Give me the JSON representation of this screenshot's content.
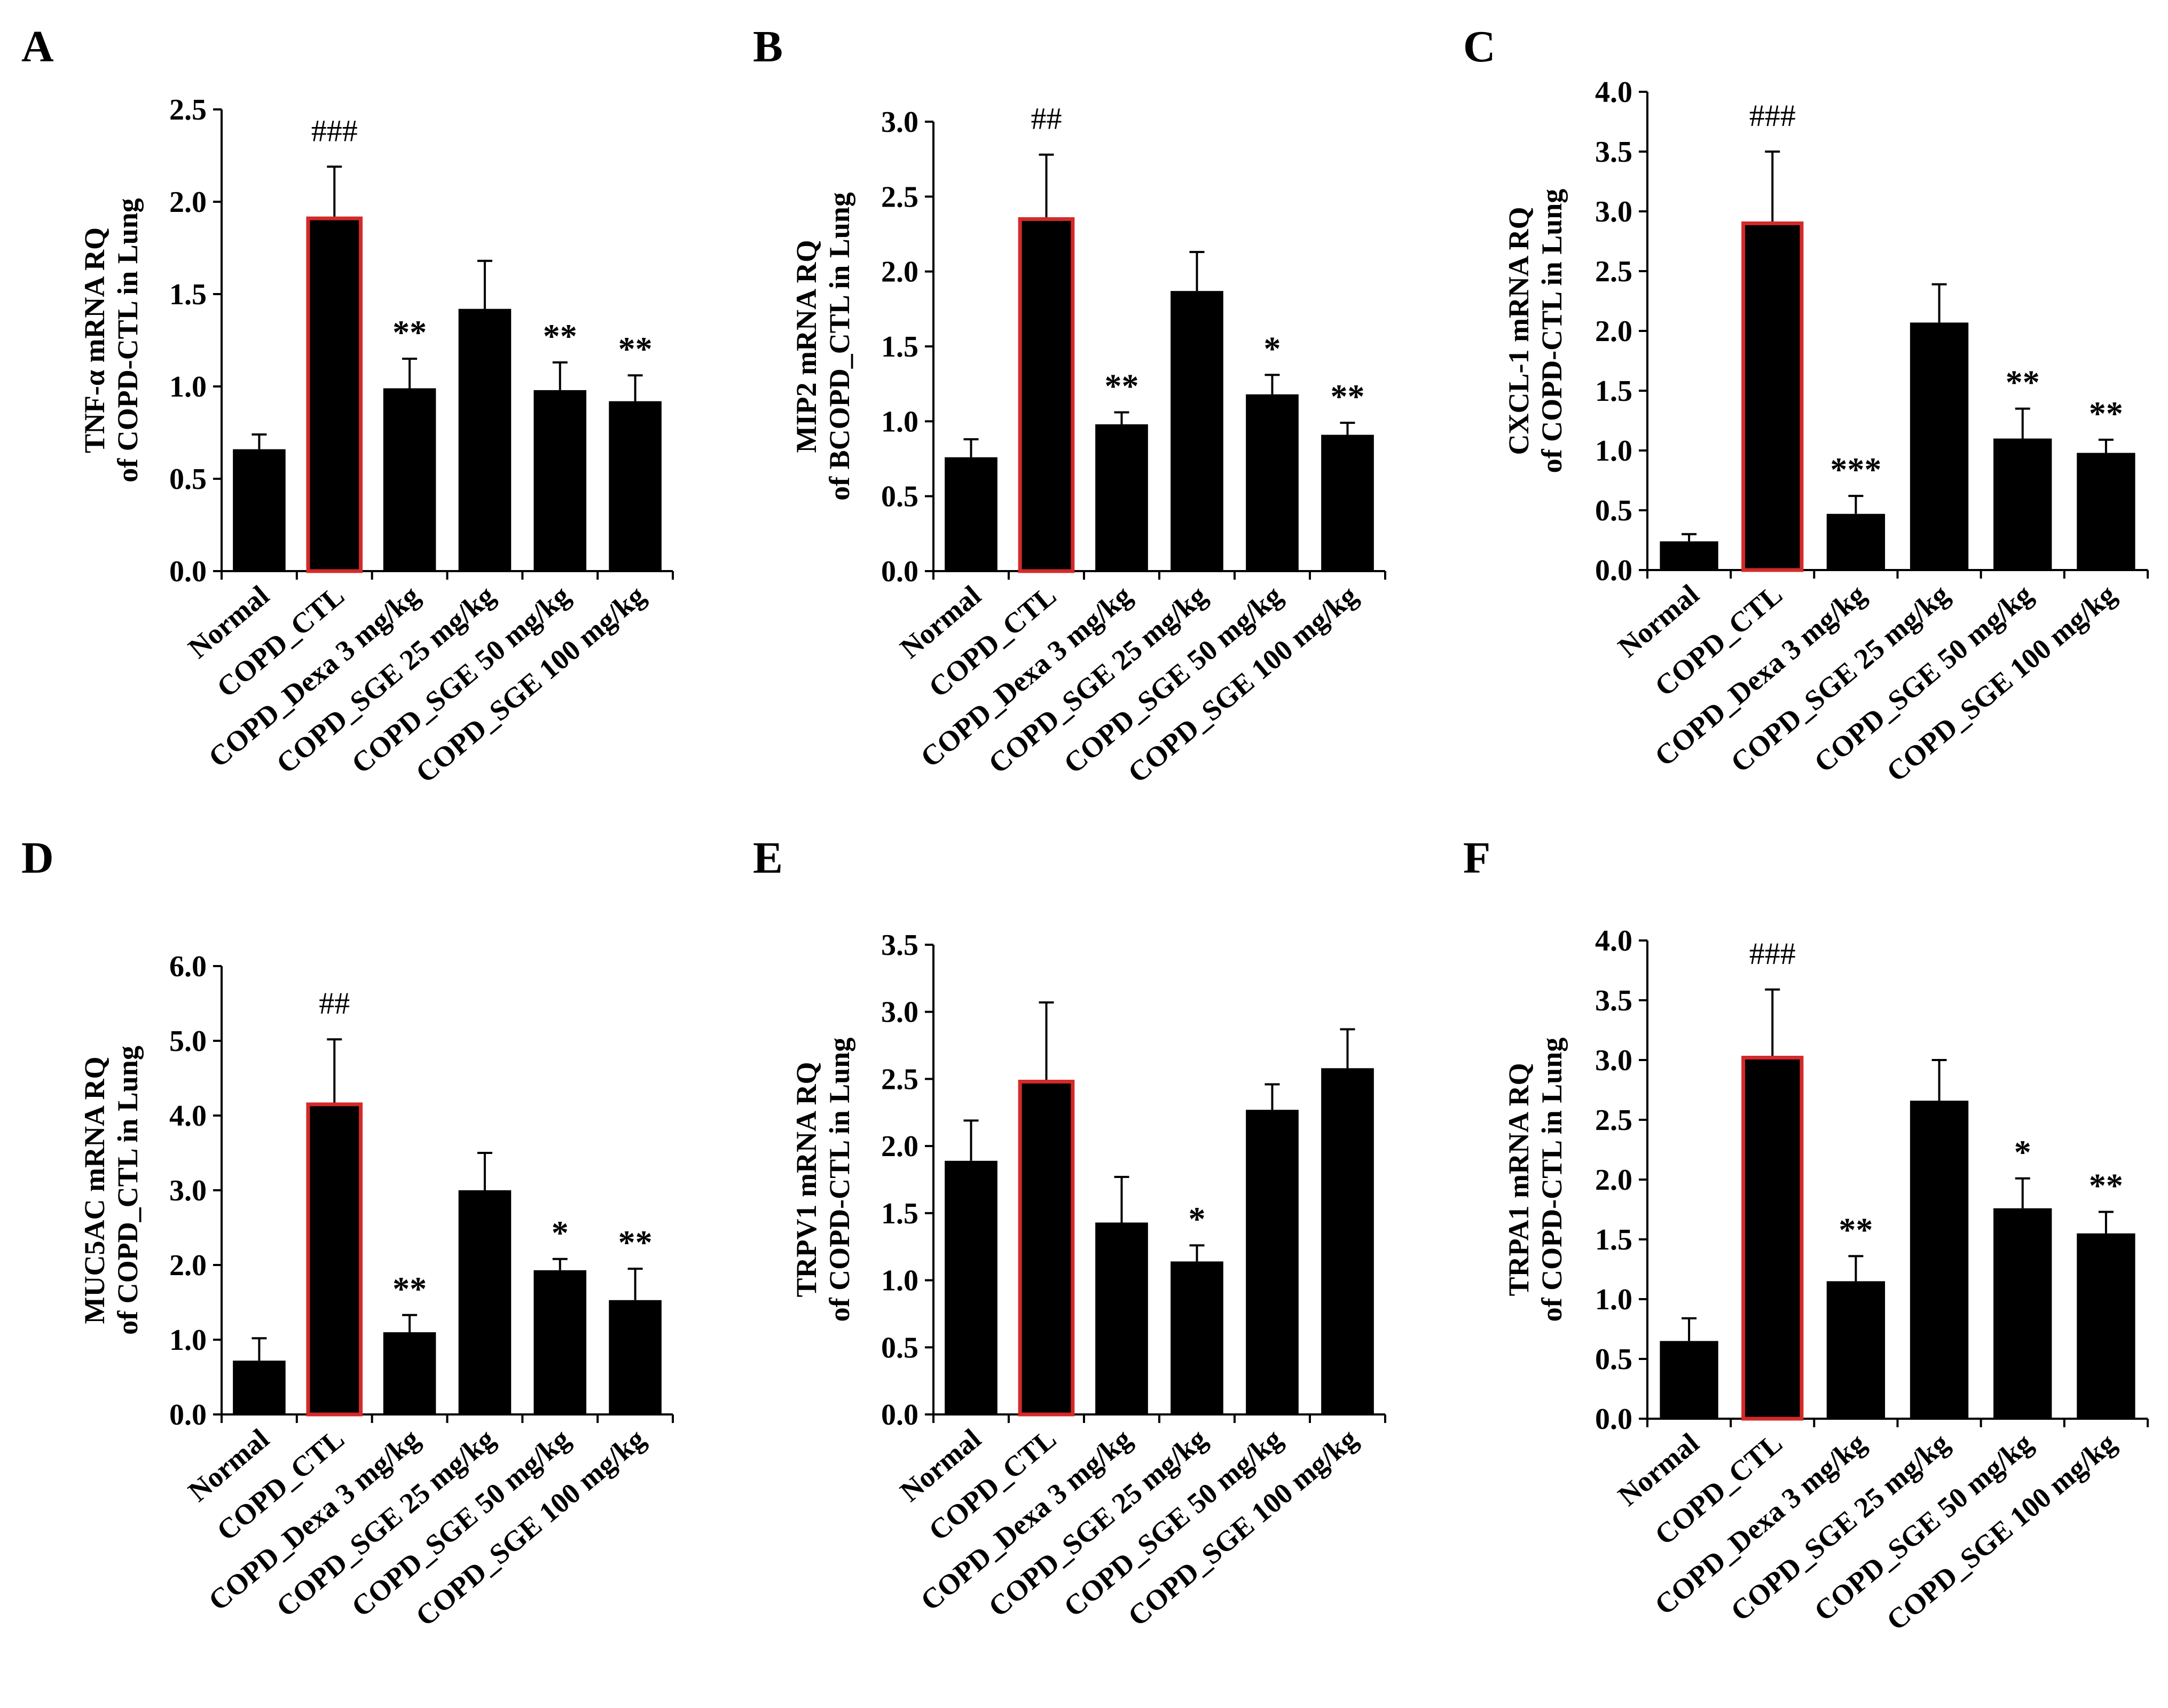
{
  "colors": {
    "bar": "#000000",
    "highlight_border": "#d42a2a",
    "axis": "#000000"
  },
  "chart_data": [
    {
      "panel": "A",
      "type": "bar",
      "ylabel": [
        "TNF-α mRNA RQ",
        "of COPD-CTL in Lung"
      ],
      "ylim": [
        0,
        2.5
      ],
      "yticks": [
        0.0,
        0.5,
        1.0,
        1.5,
        2.0,
        2.5
      ],
      "categories": [
        "Normal",
        "COPD_CTL",
        "COPD_Dexa 3 mg/kg",
        "COPD_SGE 25 mg/kg",
        "COPD_SGE 50 mg/kg",
        "COPD_SGE 100 mg/kg"
      ],
      "values": [
        0.66,
        1.91,
        0.99,
        1.42,
        0.98,
        0.92
      ],
      "errors": [
        0.08,
        0.28,
        0.16,
        0.26,
        0.15,
        0.14
      ],
      "annotations": [
        "",
        "###",
        "**",
        "",
        "**",
        "**"
      ]
    },
    {
      "panel": "B",
      "type": "bar",
      "ylabel": [
        "MIP2 mRNA RQ",
        "of BCOPD_CTL in Lung"
      ],
      "ylim": [
        0,
        3.0
      ],
      "yticks": [
        0.0,
        0.5,
        1.0,
        1.5,
        2.0,
        2.5,
        3.0
      ],
      "categories": [
        "Normal",
        "COPD_CTL",
        "COPD_Dexa 3 mg/kg",
        "COPD_SGE 25 mg/kg",
        "COPD_SGE 50 mg/kg",
        "COPD_SGE 100 mg/kg"
      ],
      "values": [
        0.76,
        2.35,
        0.98,
        1.87,
        1.18,
        0.91
      ],
      "errors": [
        0.12,
        0.43,
        0.08,
        0.26,
        0.13,
        0.08
      ],
      "annotations": [
        "",
        "##",
        "**",
        "",
        "*",
        "**"
      ]
    },
    {
      "panel": "C",
      "type": "bar",
      "ylabel": [
        "CXCL-1 mRNA RQ",
        "of COPD-CTL in Lung"
      ],
      "ylim": [
        0,
        4.0
      ],
      "yticks": [
        0.0,
        0.5,
        1.0,
        1.5,
        2.0,
        2.5,
        3.0,
        3.5,
        4.0
      ],
      "categories": [
        "Normal",
        "COPD_CTL",
        "COPD_Dexa 3 mg/kg",
        "COPD_SGE 25 mg/kg",
        "COPD_SGE 50 mg/kg",
        "COPD_SGE 100 mg/kg"
      ],
      "values": [
        0.24,
        2.9,
        0.47,
        2.07,
        1.1,
        0.98
      ],
      "errors": [
        0.06,
        0.6,
        0.15,
        0.32,
        0.25,
        0.11
      ],
      "annotations": [
        "",
        "###",
        "***",
        "",
        "**",
        "**"
      ]
    },
    {
      "panel": "D",
      "type": "bar",
      "ylabel": [
        "MUC5AC mRNA RQ",
        "of COPD_CTL in Lung"
      ],
      "ylim": [
        0,
        6.0
      ],
      "yticks": [
        0.0,
        1.0,
        2.0,
        3.0,
        4.0,
        5.0,
        6.0
      ],
      "categories": [
        "Normal",
        "COPD_CTL",
        "COPD_Dexa 3 mg/kg",
        "COPD_SGE 25 mg/kg",
        "COPD_SGE 50 mg/kg",
        "COPD_SGE 100 mg/kg"
      ],
      "values": [
        0.72,
        4.15,
        1.1,
        3.0,
        1.93,
        1.53
      ],
      "errors": [
        0.3,
        0.87,
        0.23,
        0.5,
        0.15,
        0.42
      ],
      "annotations": [
        "",
        "##",
        "**",
        "",
        "*",
        "**"
      ]
    },
    {
      "panel": "E",
      "type": "bar",
      "ylabel": [
        "TRPV1 mRNA RQ",
        "of COPD-CTL in Lung"
      ],
      "ylim": [
        0,
        3.5
      ],
      "yticks": [
        0.0,
        0.5,
        1.0,
        1.5,
        2.0,
        2.5,
        3.0,
        3.5
      ],
      "categories": [
        "Normal",
        "COPD_CTL",
        "COPD_Dexa 3 mg/kg",
        "COPD_SGE 25 mg/kg",
        "COPD_SGE 50 mg/kg",
        "COPD_SGE 100 mg/kg"
      ],
      "values": [
        1.89,
        2.48,
        1.43,
        1.14,
        2.27,
        2.58
      ],
      "errors": [
        0.3,
        0.59,
        0.34,
        0.12,
        0.19,
        0.29
      ],
      "annotations": [
        "",
        "",
        "",
        "*",
        "",
        ""
      ]
    },
    {
      "panel": "F",
      "type": "bar",
      "ylabel": [
        "TRPA1 mRNA RQ",
        "of COPD-CTL in Lung"
      ],
      "ylim": [
        0,
        4.0
      ],
      "yticks": [
        0.0,
        0.5,
        1.0,
        1.5,
        2.0,
        2.5,
        3.0,
        3.5,
        4.0
      ],
      "categories": [
        "Normal",
        "COPD_CTL",
        "COPD_Dexa 3 mg/kg",
        "COPD_SGE 25 mg/kg",
        "COPD_SGE 50 mg/kg",
        "COPD_SGE 100 mg/kg"
      ],
      "values": [
        0.65,
        3.02,
        1.15,
        2.66,
        1.76,
        1.55
      ],
      "errors": [
        0.19,
        0.57,
        0.21,
        0.34,
        0.25,
        0.18
      ],
      "annotations": [
        "",
        "###",
        "**",
        "",
        "*",
        "**"
      ]
    }
  ]
}
